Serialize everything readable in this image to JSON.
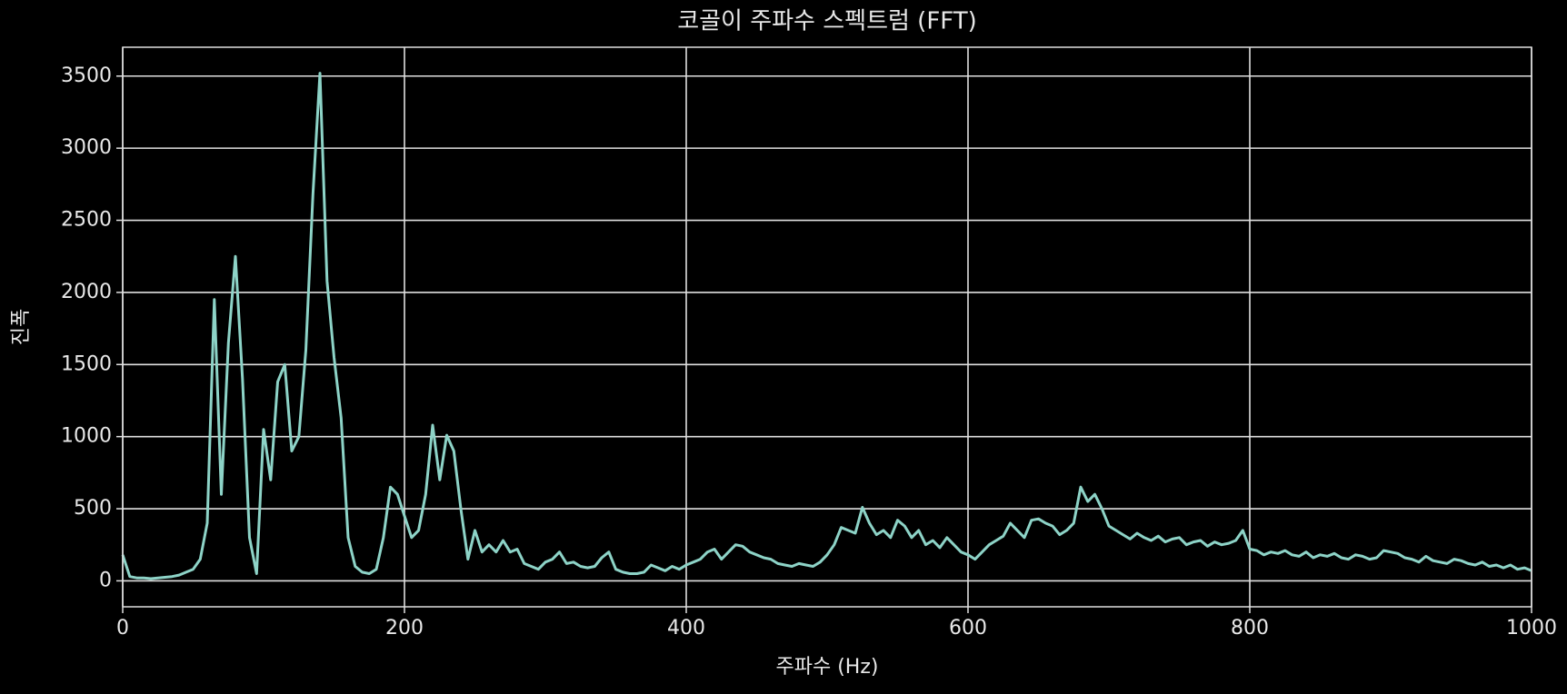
{
  "chart_data": {
    "type": "line",
    "title": "코골이 주파수 스펙트럼 (FFT)",
    "xlabel": "주파수 (Hz)",
    "ylabel": "진폭",
    "xlim": [
      0,
      1000
    ],
    "ylim": [
      -180,
      3700
    ],
    "xticks": [
      0,
      200,
      400,
      600,
      800,
      1000
    ],
    "yticks": [
      0,
      500,
      1000,
      1500,
      2000,
      2500,
      3000,
      3500
    ],
    "grid": true,
    "x": [
      0,
      5,
      10,
      15,
      20,
      25,
      30,
      35,
      40,
      45,
      50,
      55,
      60,
      65,
      70,
      75,
      80,
      85,
      90,
      95,
      100,
      105,
      110,
      115,
      120,
      125,
      130,
      135,
      140,
      145,
      150,
      155,
      160,
      165,
      170,
      175,
      180,
      185,
      190,
      195,
      200,
      205,
      210,
      215,
      220,
      225,
      230,
      235,
      240,
      245,
      250,
      255,
      260,
      265,
      270,
      275,
      280,
      285,
      290,
      295,
      300,
      305,
      310,
      315,
      320,
      325,
      330,
      335,
      340,
      345,
      350,
      355,
      360,
      365,
      370,
      375,
      380,
      385,
      390,
      395,
      400,
      405,
      410,
      415,
      420,
      425,
      430,
      435,
      440,
      445,
      450,
      455,
      460,
      465,
      470,
      475,
      480,
      485,
      490,
      495,
      500,
      505,
      510,
      515,
      520,
      525,
      530,
      535,
      540,
      545,
      550,
      555,
      560,
      565,
      570,
      575,
      580,
      585,
      590,
      595,
      600,
      605,
      610,
      615,
      620,
      625,
      630,
      635,
      640,
      645,
      650,
      655,
      660,
      665,
      670,
      675,
      680,
      685,
      690,
      695,
      700,
      705,
      710,
      715,
      720,
      725,
      730,
      735,
      740,
      745,
      750,
      755,
      760,
      765,
      770,
      775,
      780,
      785,
      790,
      795,
      800,
      805,
      810,
      815,
      820,
      825,
      830,
      835,
      840,
      845,
      850,
      855,
      860,
      865,
      870,
      875,
      880,
      885,
      890,
      895,
      900,
      905,
      910,
      915,
      920,
      925,
      930,
      935,
      940,
      945,
      950,
      955,
      960,
      965,
      970,
      975,
      980,
      985,
      990,
      995,
      1000
    ],
    "series": [
      {
        "name": "진폭",
        "color": "#8dd3c7",
        "values": [
          180,
          30,
          20,
          20,
          15,
          20,
          25,
          30,
          40,
          60,
          80,
          150,
          400,
          1950,
          600,
          1650,
          2250,
          1400,
          300,
          50,
          1050,
          700,
          1380,
          1500,
          900,
          1000,
          1600,
          2680,
          3520,
          2080,
          1550,
          1130,
          300,
          100,
          60,
          50,
          80,
          300,
          650,
          600,
          450,
          300,
          350,
          600,
          1080,
          700,
          1010,
          900,
          500,
          150,
          350,
          200,
          250,
          200,
          280,
          200,
          220,
          120,
          100,
          80,
          130,
          150,
          200,
          120,
          130,
          100,
          90,
          100,
          160,
          200,
          80,
          60,
          50,
          50,
          60,
          110,
          90,
          70,
          100,
          80,
          110,
          130,
          150,
          200,
          220,
          150,
          200,
          250,
          240,
          200,
          180,
          160,
          150,
          120,
          110,
          100,
          120,
          110,
          100,
          130,
          180,
          250,
          370,
          350,
          330,
          510,
          400,
          320,
          350,
          300,
          420,
          380,
          300,
          350,
          250,
          280,
          230,
          300,
          250,
          200,
          180,
          150,
          200,
          250,
          280,
          310,
          400,
          350,
          300,
          420,
          430,
          400,
          380,
          320,
          350,
          400,
          650,
          550,
          600,
          500,
          380,
          350,
          320,
          290,
          330,
          300,
          280,
          310,
          270,
          290,
          300,
          250,
          270,
          280,
          240,
          270,
          250,
          260,
          280,
          350,
          220,
          210,
          180,
          200,
          190,
          210,
          180,
          170,
          200,
          160,
          180,
          170,
          190,
          160,
          150,
          180,
          170,
          150,
          160,
          210,
          200,
          190,
          160,
          150,
          130,
          170,
          140,
          130,
          120,
          150,
          140,
          120,
          110,
          130,
          100,
          110,
          90,
          110,
          80,
          90,
          70
        ]
      }
    ]
  }
}
